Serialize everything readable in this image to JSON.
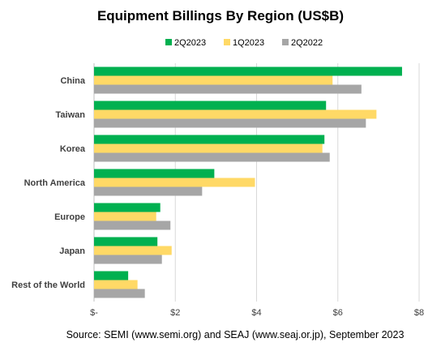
{
  "chart_data": {
    "type": "bar",
    "orientation": "horizontal",
    "title": "Equipment Billings By Region (US$B)",
    "categories": [
      "China",
      "Taiwan",
      "Korea",
      "North America",
      "Europe",
      "Japan",
      "Rest of the World"
    ],
    "series": [
      {
        "name": "2Q2023",
        "color": "#00b050",
        "values": [
          7.58,
          5.71,
          5.67,
          2.96,
          1.63,
          1.56,
          0.84
        ]
      },
      {
        "name": "1Q2023",
        "color": "#ffd966",
        "values": [
          5.87,
          6.95,
          5.62,
          3.96,
          1.53,
          1.91,
          1.07
        ]
      },
      {
        "name": "2Q2022",
        "color": "#a6a6a6",
        "values": [
          6.58,
          6.69,
          5.8,
          2.66,
          1.88,
          1.67,
          1.25
        ]
      }
    ],
    "xlim": [
      0,
      8
    ],
    "xticks": [
      0,
      2,
      4,
      6,
      8
    ],
    "xtick_labels": [
      "$-",
      "$2",
      "$4",
      "$6",
      "$8"
    ],
    "grid": true,
    "legend_position": "top"
  },
  "source": "Source: SEMI (www.semi.org) and SEAJ (www.seaj.or.jp), September 2023"
}
